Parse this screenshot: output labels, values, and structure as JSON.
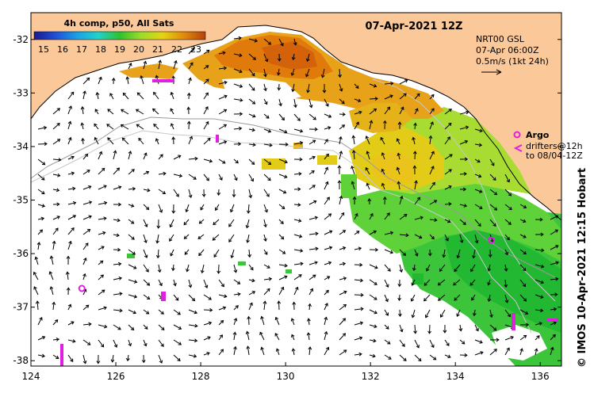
{
  "title": "07-Apr-2021 12Z",
  "colorbar": {
    "title": "4h comp, p50, All Sats",
    "ticks": [
      "15",
      "16",
      "17",
      "18",
      "19",
      "20",
      "21",
      "22",
      "23"
    ],
    "vmin": 14.5,
    "vmax": 23.5,
    "colors": [
      "#1a1a8c",
      "#1f4fd6",
      "#1aa0e6",
      "#22d2c8",
      "#30c030",
      "#9edc2a",
      "#e6d214",
      "#e08a0c",
      "#b4420a"
    ]
  },
  "current_legend": {
    "model": "NRT00 GSL",
    "time": "07-Apr 06:00Z",
    "scale": "0.5m/s (1kt 24h)"
  },
  "argo_legend": {
    "title": "Argo",
    "line1": "drifters@12h",
    "line2": "to 08/04-12Z"
  },
  "credit": "© IMOS 10-Apr-2021 12:15 Hobart",
  "axes": {
    "lon_ticks": [
      "124",
      "126",
      "128",
      "130",
      "132",
      "134",
      "136"
    ],
    "lat_ticks": [
      "-32",
      "-33",
      "-34",
      "-35",
      "-36",
      "-37",
      "-38"
    ],
    "lon_range": [
      124,
      136.5
    ],
    "lat_range": [
      -31.5,
      -38.1
    ]
  },
  "argo_floats": [
    {
      "lon": 134.85,
      "lat": -35.75
    },
    {
      "lon": 125.2,
      "lat": -36.65
    }
  ],
  "colors": {
    "land": "#fbc89a",
    "no_data": "#ffffff",
    "argo": "#e020e0"
  }
}
